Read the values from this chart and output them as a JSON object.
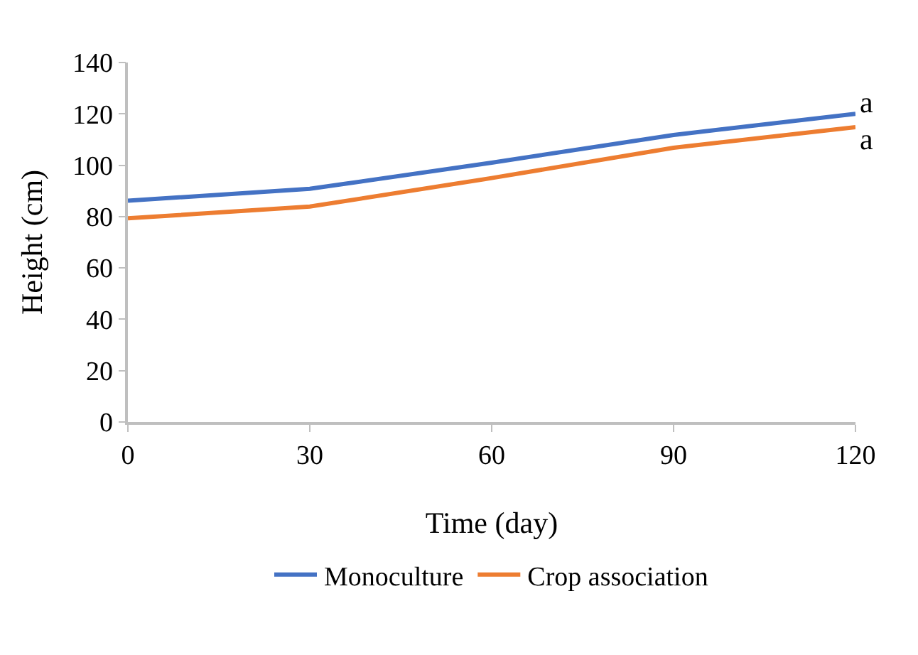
{
  "chart_data": {
    "type": "line",
    "xlabel": "Time (day)",
    "ylabel": "Height (cm)",
    "x": [
      0,
      30,
      60,
      90,
      120
    ],
    "series": [
      {
        "name": "Monoculture",
        "color": "#4472c4",
        "values": [
          86.2,
          90.8,
          101,
          111.8,
          120
        ]
      },
      {
        "name": "Crop association",
        "color": "#ed7d31",
        "values": [
          79.3,
          83.9,
          95,
          106.8,
          114.8
        ]
      }
    ],
    "xlim": [
      0,
      120
    ],
    "xticks": [
      0,
      30,
      60,
      90,
      120
    ],
    "ylim": [
      0,
      140
    ],
    "yticks": [
      0,
      20,
      40,
      60,
      80,
      100,
      120,
      140
    ],
    "annotations": [
      {
        "text": "a",
        "x": 120,
        "y": 120
      },
      {
        "text": "a",
        "x": 120,
        "y": 114.8
      }
    ],
    "legend": "bottom",
    "marker": "none",
    "line_style": "solid"
  }
}
